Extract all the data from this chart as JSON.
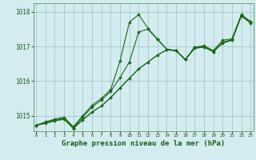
{
  "background_color": "#d4ecf0",
  "grid_color": "#9bbfbf",
  "line_color": "#1a6b1a",
  "marker_color": "#1a6b1a",
  "xlabel": "Graphe pression niveau de la mer (hPa)",
  "xlabel_fontsize": 6.5,
  "yticks": [
    1015,
    1016,
    1017,
    1018
  ],
  "xticks": [
    0,
    1,
    2,
    3,
    4,
    5,
    6,
    7,
    8,
    9,
    10,
    11,
    12,
    13,
    14,
    15,
    16,
    17,
    18,
    19,
    20,
    21,
    22,
    23
  ],
  "xlim": [
    -0.3,
    23.3
  ],
  "ylim": [
    1014.55,
    1018.25
  ],
  "s1_y": [
    1014.72,
    1014.82,
    1014.9,
    1014.95,
    1014.68,
    1015.0,
    1015.3,
    1015.5,
    1015.75,
    1016.58,
    1017.7,
    1017.92,
    1017.52,
    1017.22,
    1016.92,
    1016.88,
    1016.62,
    1016.98,
    1017.02,
    1016.88,
    1017.18,
    1017.22,
    1017.92,
    1017.72
  ],
  "s2_y": [
    1014.72,
    1014.8,
    1014.88,
    1014.93,
    1014.65,
    1014.95,
    1015.25,
    1015.45,
    1015.7,
    1016.1,
    1016.55,
    1017.42,
    1017.5,
    1017.2,
    1016.92,
    1016.88,
    1016.62,
    1016.98,
    1017.0,
    1016.85,
    1017.12,
    1017.2,
    1017.9,
    1017.7
  ],
  "s3_y": [
    1014.72,
    1014.78,
    1014.85,
    1014.9,
    1014.63,
    1014.88,
    1015.1,
    1015.28,
    1015.52,
    1015.8,
    1016.08,
    1016.35,
    1016.55,
    1016.75,
    1016.9,
    1016.88,
    1016.62,
    1016.95,
    1016.98,
    1016.85,
    1017.1,
    1017.18,
    1017.88,
    1017.68
  ],
  "s4_y": [
    1014.72,
    1014.78,
    1014.85,
    1014.9,
    1014.63,
    1014.88,
    1015.1,
    1015.28,
    1015.52,
    1015.8,
    1016.08,
    1016.35,
    1016.55,
    1016.75,
    1016.9,
    1016.88,
    1016.62,
    1016.95,
    1016.98,
    1016.85,
    1017.1,
    1017.18,
    1017.88,
    1017.68
  ]
}
